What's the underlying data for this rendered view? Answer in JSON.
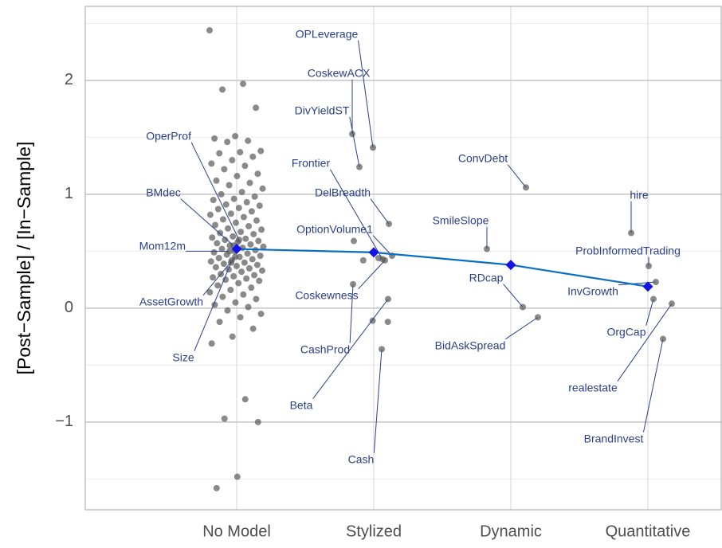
{
  "chart_data": {
    "type": "scatter",
    "y_label": "[Post−Sample] / [In−Sample]",
    "categories": [
      "No Model",
      "Stylized",
      "Dynamic",
      "Quantitative"
    ],
    "ylim": [
      -1.77,
      2.65
    ],
    "yticks": [
      {
        "value": -1,
        "label": "−1"
      },
      0,
      1,
      2
    ],
    "minor_yticks": [
      -1.5,
      -0.5,
      0.5,
      1.5,
      2.5
    ],
    "grid": true,
    "point_color": "#595959",
    "label_color": "#2a3f88",
    "points": [
      [
        2.44,
        1.97,
        1.92,
        1.76,
        1.51,
        1.49,
        1.47,
        1.46,
        1.38,
        1.37,
        1.36,
        1.33,
        1.3,
        1.27,
        1.25,
        1.22,
        1.18,
        1.16,
        1.12,
        1.1,
        1.08,
        1.05,
        1.02,
        1.0,
        0.98,
        0.96,
        0.95,
        0.93,
        0.91,
        0.9,
        0.88,
        0.87,
        0.85,
        0.83,
        0.82,
        0.8,
        0.78,
        0.77,
        0.75,
        0.73,
        0.72,
        0.7,
        0.69,
        0.67,
        0.66,
        0.65,
        0.63,
        0.62,
        0.61,
        0.6,
        0.59,
        0.58,
        0.57,
        0.56,
        0.55,
        0.54,
        0.53,
        0.52,
        0.51,
        0.5,
        0.49,
        0.48,
        0.47,
        0.46,
        0.45,
        0.44,
        0.43,
        0.42,
        0.41,
        0.4,
        0.39,
        0.38,
        0.37,
        0.36,
        0.35,
        0.34,
        0.33,
        0.32,
        0.3,
        0.29,
        0.28,
        0.27,
        0.26,
        0.25,
        0.24,
        0.22,
        0.2,
        0.18,
        0.16,
        0.14,
        0.12,
        0.1,
        0.08,
        0.05,
        0.03,
        0.01,
        -0.02,
        -0.05,
        -0.08,
        -0.12,
        -0.18,
        -0.25,
        -0.31,
        -0.8,
        -0.97,
        -1.0,
        -1.48,
        -1.58
      ],
      [
        0.59,
        0.44,
        0.42,
        -0.12,
        -0.11
      ],
      [],
      []
    ],
    "labeled_points": [
      [
        {
          "label": "OperProf",
          "value": 0.6
        },
        {
          "label": "BMdec",
          "value": 0.55
        },
        {
          "label": "Mom12m",
          "value": 0.5
        },
        {
          "label": "AssetGrowth",
          "value": 0.45
        },
        {
          "label": "Size",
          "value": 0.4
        }
      ],
      [
        {
          "label": "OPLeverage",
          "value": 1.41
        },
        {
          "label": "CoskewACX",
          "value": 1.53
        },
        {
          "label": "DivYieldST",
          "value": 1.24
        },
        {
          "label": "Frontier",
          "value": 0.43
        },
        {
          "label": "DelBreadth",
          "value": 0.74
        },
        {
          "label": "OptionVolume1",
          "value": 0.46
        },
        {
          "label": "Coskewness",
          "value": 0.42
        },
        {
          "label": "CashProd",
          "value": 0.21
        },
        {
          "label": "Beta",
          "value": 0.08
        },
        {
          "label": "Cash",
          "value": -0.36
        }
      ],
      [
        {
          "label": "ConvDebt",
          "value": 1.06
        },
        {
          "label": "SmileSlope",
          "value": 0.52
        },
        {
          "label": "RDcap",
          "value": 0.01
        },
        {
          "label": "BidAskSpread",
          "value": -0.08
        }
      ],
      [
        {
          "label": "hire",
          "value": 0.66
        },
        {
          "label": "ProbInformedTrading",
          "value": 0.37
        },
        {
          "label": "InvGrowth",
          "value": 0.23
        },
        {
          "label": "OrgCap",
          "value": 0.08
        },
        {
          "label": "realestate",
          "value": 0.04
        },
        {
          "label": "BrandInvest",
          "value": -0.27
        }
      ]
    ],
    "means": {
      "color": "#0b6fc0",
      "marker_color": "#1414e6",
      "values": [
        0.52,
        0.49,
        0.38,
        0.19
      ]
    }
  }
}
